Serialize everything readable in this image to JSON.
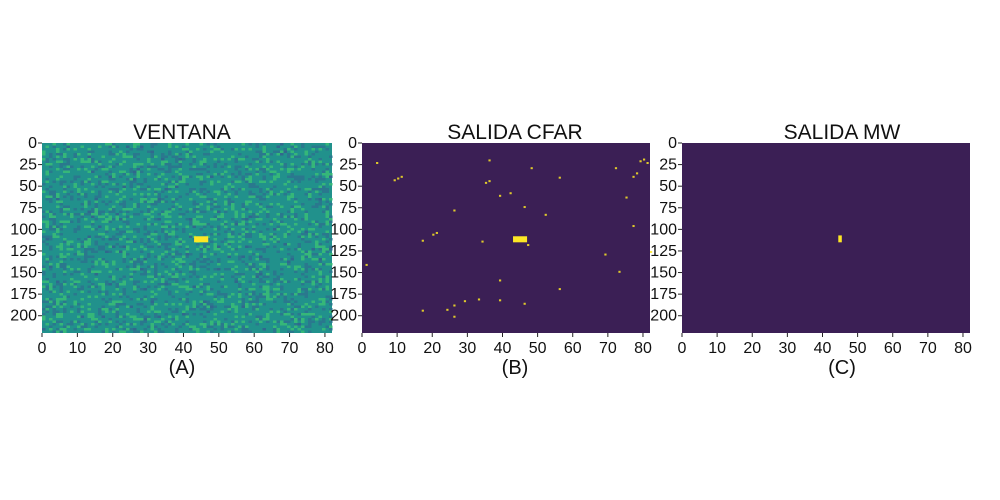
{
  "colors": {
    "background_low": "#440154",
    "noise_low": "#2a788e",
    "noise_mid": "#21918c",
    "noise_high": "#35b779",
    "target": "#fde725",
    "clear": "#3b1f55"
  },
  "chart_data": [
    {
      "type": "heatmap",
      "title": "VENTANA",
      "sublabel": "(A)",
      "xlim": [
        0,
        82
      ],
      "ylim": [
        0,
        220
      ],
      "xticks": [
        0,
        10,
        20,
        30,
        40,
        50,
        60,
        70,
        80
      ],
      "yticks": [
        0,
        25,
        50,
        75,
        100,
        125,
        150,
        175,
        200
      ],
      "background": "noise",
      "targets": [
        {
          "x": 43,
          "y": 108,
          "w": 4,
          "h": 7
        }
      ],
      "detections": []
    },
    {
      "type": "heatmap",
      "title": "SALIDA CFAR",
      "sublabel": "(B)",
      "xlim": [
        0,
        82
      ],
      "ylim": [
        0,
        220
      ],
      "xticks": [
        0,
        10,
        20,
        30,
        40,
        50,
        60,
        70,
        80
      ],
      "yticks": [
        0,
        25,
        50,
        75,
        100,
        125,
        150,
        175,
        200
      ],
      "background": "clear",
      "targets": [
        {
          "x": 43,
          "y": 108,
          "w": 4,
          "h": 7
        }
      ],
      "detections": [
        [
          4,
          22
        ],
        [
          9,
          42
        ],
        [
          10,
          40
        ],
        [
          11,
          38
        ],
        [
          20,
          105
        ],
        [
          21,
          103
        ],
        [
          17,
          112
        ],
        [
          36,
          19
        ],
        [
          35,
          45
        ],
        [
          36,
          43
        ],
        [
          39,
          60
        ],
        [
          42,
          57
        ],
        [
          26,
          77
        ],
        [
          46,
          73
        ],
        [
          48,
          28
        ],
        [
          52,
          82
        ],
        [
          56,
          39
        ],
        [
          34,
          113
        ],
        [
          47,
          117
        ],
        [
          1,
          140
        ],
        [
          69,
          128
        ],
        [
          79,
          20
        ],
        [
          80,
          18
        ],
        [
          81,
          22
        ],
        [
          77,
          38
        ],
        [
          78,
          34
        ],
        [
          75,
          62
        ],
        [
          77,
          95
        ],
        [
          82,
          125
        ],
        [
          73,
          148
        ],
        [
          39,
          158
        ],
        [
          56,
          168
        ],
        [
          33,
          180
        ],
        [
          39,
          181
        ],
        [
          26,
          187
        ],
        [
          29,
          182
        ],
        [
          17,
          193
        ],
        [
          24,
          192
        ],
        [
          26,
          200
        ],
        [
          46,
          185
        ],
        [
          72,
          28
        ]
      ]
    },
    {
      "type": "heatmap",
      "title": "SALIDA MW",
      "sublabel": "(C)",
      "xlim": [
        0,
        82
      ],
      "ylim": [
        0,
        220
      ],
      "xticks": [
        0,
        10,
        20,
        30,
        40,
        50,
        60,
        70,
        80
      ],
      "yticks": [
        0,
        25,
        50,
        75,
        100,
        125,
        150,
        175,
        200
      ],
      "background": "clear",
      "targets": [
        {
          "x": 44.5,
          "y": 107,
          "w": 1,
          "h": 8
        }
      ],
      "detections": []
    }
  ]
}
